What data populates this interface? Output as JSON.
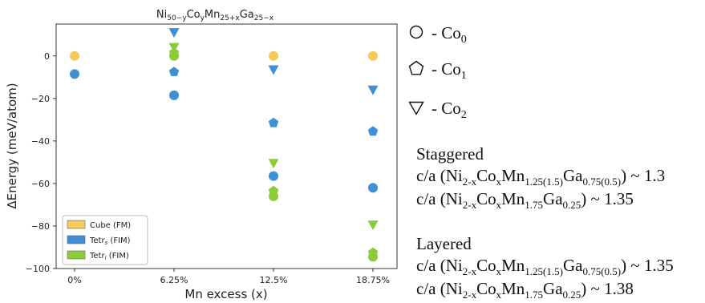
{
  "chart_data": {
    "type": "scatter",
    "title": "Ni50-yCoyMn25+xGa25-x",
    "title_parts": {
      "a": "Ni",
      "b": "50−y",
      "c": "Co",
      "d": "y",
      "e": "Mn",
      "f": "25+x",
      "g": "Ga",
      "h": "25−x"
    },
    "xlabel": "Mn excess (x)",
    "ylabel": "ΔEnergy (meV/atom)",
    "categories": [
      "0%",
      "6.25%",
      "12.5%",
      "18.75%"
    ],
    "ylim": [
      -100,
      15
    ],
    "yticks": [
      0,
      -20,
      -40,
      -60,
      -80,
      -100
    ],
    "legend_position": "lower-left",
    "series": [
      {
        "name": "Cube (FM)",
        "color": "#f7c95c",
        "points": [
          {
            "x": "0%",
            "y": 0,
            "shape": "circle"
          },
          {
            "x": "6.25%",
            "y": 0,
            "shape": "circle"
          },
          {
            "x": "12.5%",
            "y": 0,
            "shape": "circle"
          },
          {
            "x": "18.75%",
            "y": 0,
            "shape": "circle"
          }
        ]
      },
      {
        "name": "Tetr_s (FIM)",
        "color": "#3e8fd3",
        "points": [
          {
            "x": "0%",
            "y": -8.5,
            "shape": "circle"
          },
          {
            "x": "6.25%",
            "y": -18.5,
            "shape": "circle"
          },
          {
            "x": "6.25%",
            "y": -7.5,
            "shape": "pentagon"
          },
          {
            "x": "6.25%",
            "y": 11,
            "shape": "triangle"
          },
          {
            "x": "12.5%",
            "y": -56.5,
            "shape": "circle"
          },
          {
            "x": "12.5%",
            "y": -31.5,
            "shape": "pentagon"
          },
          {
            "x": "12.5%",
            "y": -6.5,
            "shape": "triangle"
          },
          {
            "x": "18.75%",
            "y": -62,
            "shape": "circle"
          },
          {
            "x": "18.75%",
            "y": -35.5,
            "shape": "pentagon"
          },
          {
            "x": "18.75%",
            "y": -16,
            "shape": "triangle"
          }
        ]
      },
      {
        "name": "Tetr_l (FIM)",
        "color": "#8ccc3b",
        "points": [
          {
            "x": "6.25%",
            "y": 0,
            "shape": "circle"
          },
          {
            "x": "6.25%",
            "y": 1.5,
            "shape": "pentagon"
          },
          {
            "x": "6.25%",
            "y": 4,
            "shape": "triangle"
          },
          {
            "x": "12.5%",
            "y": -66,
            "shape": "circle"
          },
          {
            "x": "12.5%",
            "y": -63.5,
            "shape": "pentagon"
          },
          {
            "x": "12.5%",
            "y": -50.5,
            "shape": "triangle"
          },
          {
            "x": "18.75%",
            "y": -94.5,
            "shape": "circle"
          },
          {
            "x": "18.75%",
            "y": -92.5,
            "shape": "pentagon"
          },
          {
            "x": "18.75%",
            "y": -79.5,
            "shape": "triangle"
          }
        ]
      }
    ],
    "legend": [
      {
        "label_main": "Cube (FM)",
        "label_sub": "",
        "label_tail": "",
        "color": "#f7c95c"
      },
      {
        "label_main": "Tetr",
        "label_sub": "s",
        "label_tail": " (FIM)",
        "color": "#3e8fd3"
      },
      {
        "label_main": "Tetr",
        "label_sub": "l",
        "label_tail": " (FIM)",
        "color": "#8ccc3b"
      }
    ]
  },
  "symbol_key": [
    {
      "shape": "circle",
      "prefix": "- Co",
      "sub": "0"
    },
    {
      "shape": "pentagon",
      "prefix": "- Co",
      "sub": "1"
    },
    {
      "shape": "triangle",
      "prefix": "- Co",
      "sub": "2"
    }
  ],
  "notes": {
    "staggered": {
      "heading": "Staggered",
      "line1": {
        "a": "c/a (Ni",
        "b": "2-x",
        "c": "Co",
        "d": "x",
        "e": "Mn",
        "f": "1.25(1.5)",
        "g": "Ga",
        "h": "0.75(0.5)",
        "i": ") ~ 1.3"
      },
      "line2": {
        "a": "c/a (Ni",
        "b": "2-x",
        "c": "Co",
        "d": "x",
        "e": "Mn",
        "f": "1.75",
        "g": "Ga",
        "h": "0.25",
        "i": ") ~ 1.35"
      }
    },
    "layered": {
      "heading": "Layered",
      "line1": {
        "a": "c/a (Ni",
        "b": "2-x",
        "c": "Co",
        "d": "x",
        "e": "Mn",
        "f": "1.25(1.5)",
        "g": "Ga",
        "h": "0.75(0.5)",
        "i": ") ~ 1.35"
      },
      "line2": {
        "a": "c/a (Ni",
        "b": "2-x",
        "c": "Co",
        "d": "x",
        "e": "Mn",
        "f": "1.75",
        "g": "Ga",
        "h": "0.25",
        "i": ") ~ 1.38"
      }
    }
  }
}
